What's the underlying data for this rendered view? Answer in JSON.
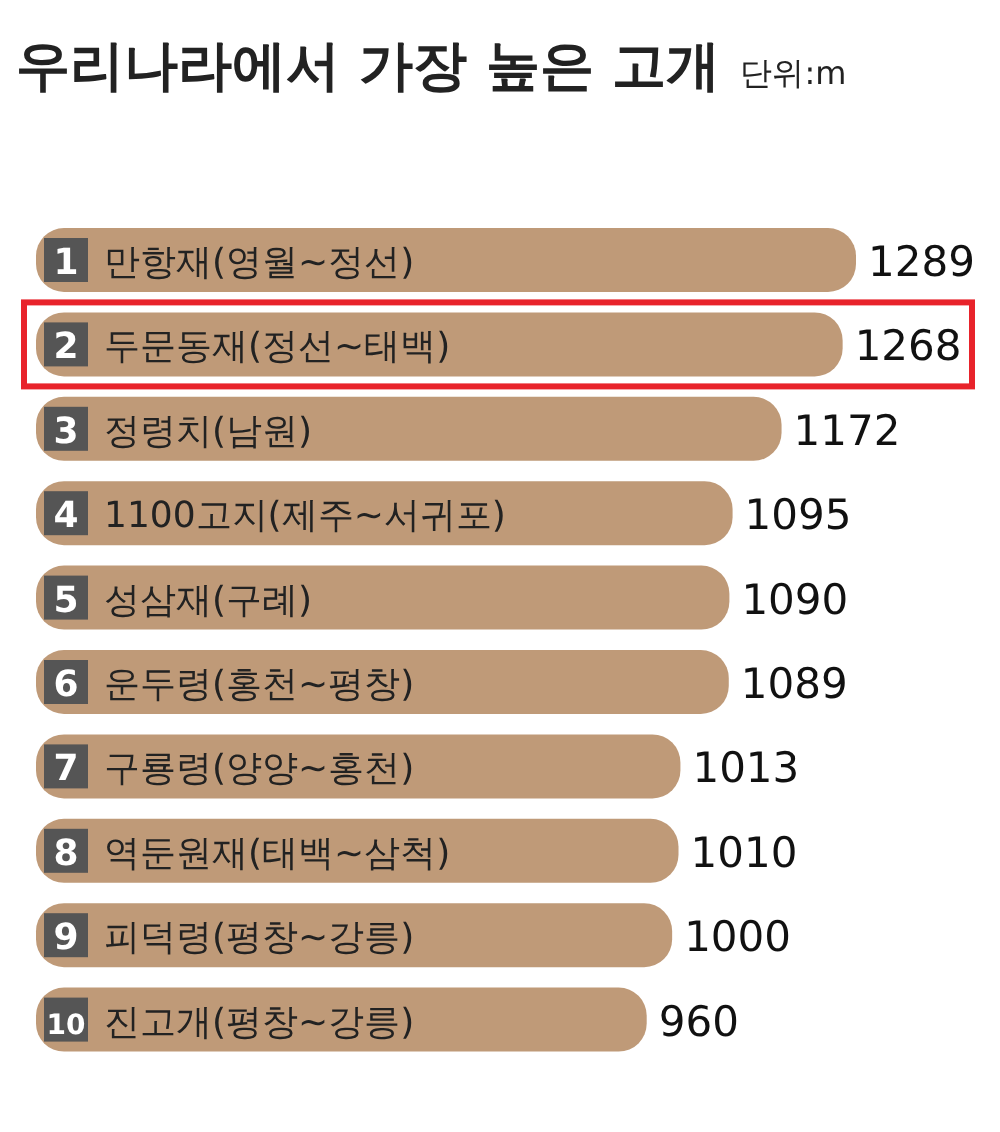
{
  "chart_data": {
    "type": "bar",
    "orientation": "horizontal",
    "title": "우리나라에서 가장 높은 고개",
    "subtitle": "단위:m",
    "categories": [
      "1 만항재(영월~정선)",
      "2 두문동재(정선~태백)",
      "3 정령치(남원)",
      "4 1100고지(제주~서귀포)",
      "5 성삼재(구례)",
      "6 운두령(홍천~평창)",
      "7 구룡령(양양~홍천)",
      "8 역둔원재(태백~삼척)",
      "9 피덕령(평창~강릉)",
      "10 진고개(평창~강릉)"
    ],
    "values": [
      1289,
      1268,
      1172,
      1095,
      1090,
      1089,
      1013,
      1010,
      1000,
      960
    ],
    "color": "#bf9a78",
    "data_labels": true
  }
}
